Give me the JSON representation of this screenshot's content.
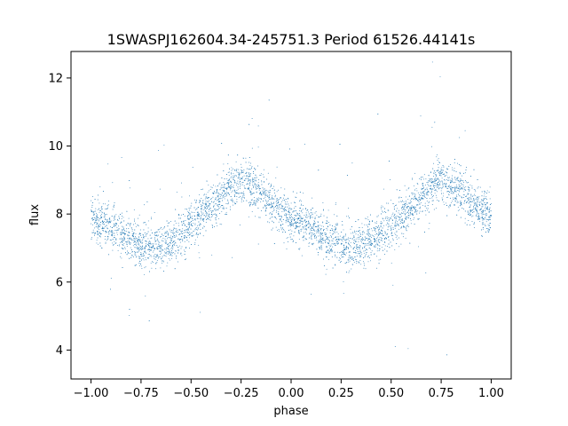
{
  "chart_data": {
    "type": "scatter",
    "title": "1SWASPJ162604.34-245751.3 Period 61526.44141s",
    "xlabel": "phase",
    "ylabel": "flux",
    "xlim": [
      -1.1,
      1.1
    ],
    "ylim": [
      3.15,
      12.78
    ],
    "xticks": [
      -1.0,
      -0.75,
      -0.5,
      -0.25,
      0.0,
      0.25,
      0.5,
      0.75,
      1.0
    ],
    "xtick_labels": [
      "−1.00",
      "−0.75",
      "−0.50",
      "−0.25",
      "0.00",
      "0.25",
      "0.50",
      "0.75",
      "1.00"
    ],
    "yticks": [
      4,
      6,
      8,
      10,
      12
    ],
    "ytick_labels": [
      "4",
      "6",
      "8",
      "10",
      "12"
    ],
    "grid": false,
    "marker_color": "#1f77b4",
    "trend": {
      "description": "folded light curve, mean flux vs phase (repeats with period 1 in phase)",
      "x": [
        -1.0,
        -0.9,
        -0.8,
        -0.7,
        -0.6,
        -0.5,
        -0.4,
        -0.3,
        -0.25,
        -0.2,
        -0.1,
        0.0,
        0.1,
        0.2,
        0.3,
        0.4,
        0.5,
        0.6,
        0.7,
        0.75,
        0.8,
        0.9,
        1.0
      ],
      "y": [
        7.9,
        7.6,
        7.2,
        7.0,
        7.2,
        7.7,
        8.2,
        8.8,
        9.0,
        8.9,
        8.3,
        7.9,
        7.6,
        7.2,
        7.0,
        7.2,
        7.7,
        8.2,
        8.8,
        9.0,
        8.9,
        8.3,
        7.9
      ]
    }
  }
}
